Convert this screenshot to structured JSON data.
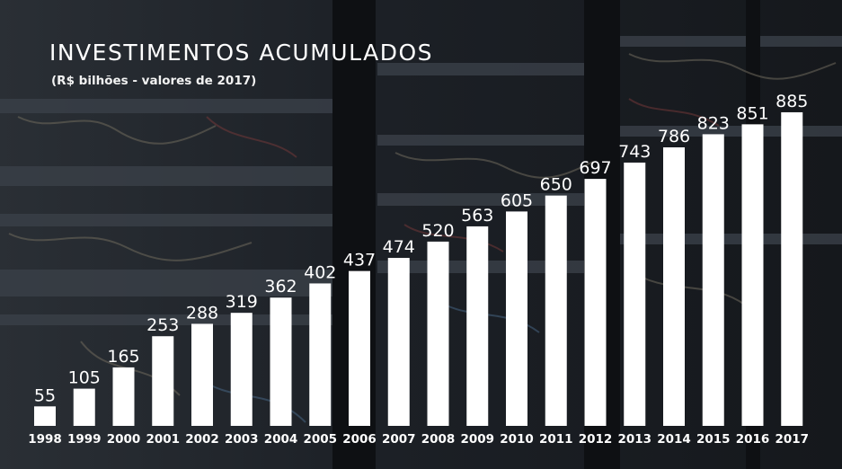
{
  "chart_data": {
    "type": "bar",
    "title": "INVESTIMENTOS ACUMULADOS",
    "subtitle": "(R$ bilhões - valores de 2017)",
    "xlabel": "",
    "ylabel": "",
    "categories": [
      "1998",
      "1999",
      "2000",
      "2001",
      "2002",
      "2003",
      "2004",
      "2005",
      "2006",
      "2007",
      "2008",
      "2009",
      "2010",
      "2011",
      "2012",
      "2013",
      "2014",
      "2015",
      "2016",
      "2017"
    ],
    "values": [
      55,
      105,
      165,
      253,
      288,
      319,
      362,
      402,
      437,
      474,
      520,
      563,
      605,
      650,
      697,
      743,
      786,
      823,
      851,
      885
    ],
    "ylim": [
      0,
      920
    ],
    "grid": false,
    "legend": "none",
    "colors": {
      "bar": "#ffffff",
      "text": "#ffffff"
    }
  }
}
